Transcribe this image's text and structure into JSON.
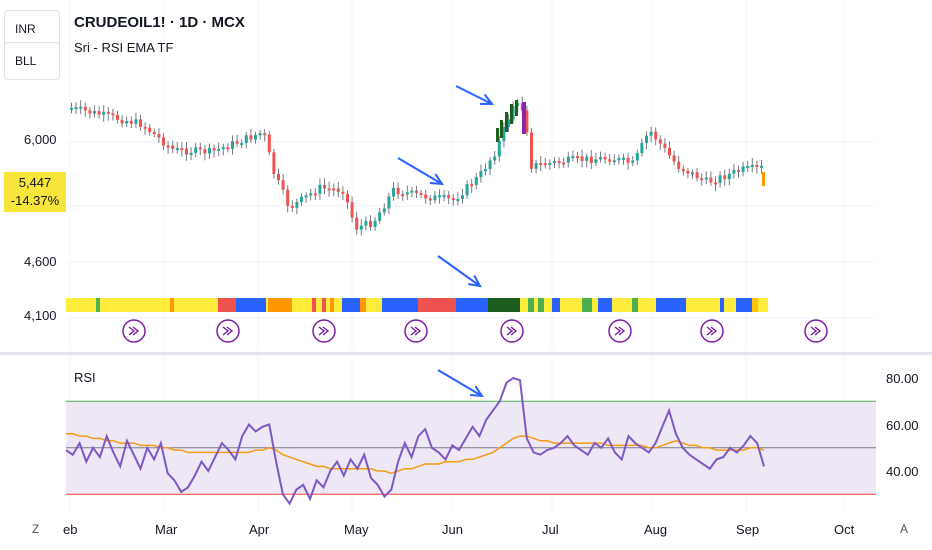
{
  "header": {
    "title": "CRUDEOIL1! · 1D · MCX",
    "indicator": "Sri - RSI EMA TF"
  },
  "badges": {
    "currency": "INR",
    "unit": "BLL"
  },
  "price_scale": {
    "labels": [
      "6,000",
      "4,600",
      "4,100"
    ],
    "last_price": "5,447",
    "last_change": "-14.37%",
    "last_color": "#f7e53b"
  },
  "rsi_pane": {
    "label": "RSI",
    "ticks": [
      "80.00",
      "60.00",
      "40.00"
    ]
  },
  "time_axis": {
    "months": [
      "eb",
      "Mar",
      "Apr",
      "May",
      "Jun",
      "Jul",
      "Aug",
      "Sep",
      "Oct"
    ],
    "left_corner": "Z",
    "right_corner": "A"
  },
  "colors": {
    "up": "#26a69a",
    "down": "#f05350",
    "wick": "#787b86",
    "rsi_line": "#7e57c2",
    "ema_line": "#f39c12",
    "arrow": "#2962ff",
    "band_fill": "#ede7f6",
    "upper_band": "#4caf50",
    "lower_band": "#f44336"
  },
  "chart_data": {
    "type": "line",
    "series": [
      {
        "name": "RSI",
        "values": [
          49,
          47,
          52,
          44,
          50,
          46,
          55,
          48,
          42,
          53,
          47,
          41,
          50,
          45,
          52,
          39,
          36,
          31,
          33,
          38,
          44,
          40,
          46,
          52,
          49,
          45,
          55,
          60,
          57,
          59,
          60,
          44,
          30,
          26,
          32,
          34,
          28,
          36,
          33,
          40,
          44,
          38,
          45,
          41,
          47,
          37,
          34,
          29,
          32,
          44,
          52,
          46,
          55,
          58,
          50,
          48,
          45,
          51,
          49,
          54,
          59,
          55,
          62,
          66,
          70,
          78,
          80,
          79,
          54,
          48,
          47,
          49,
          50,
          52,
          55,
          51,
          49,
          47,
          52,
          50,
          54,
          48,
          45,
          55,
          52,
          50,
          48,
          52,
          59,
          66,
          56,
          50,
          47,
          45,
          43,
          41,
          45,
          46,
          50,
          48,
          51,
          55,
          52,
          42
        ]
      },
      {
        "values": [
          56,
          56,
          55,
          55,
          54,
          54,
          53,
          53,
          52,
          52,
          52,
          51,
          51,
          51,
          50,
          50,
          49,
          49,
          48,
          48,
          48,
          48,
          48,
          48,
          48,
          48,
          48,
          48,
          49,
          49,
          50,
          49,
          47,
          46,
          45,
          44,
          43,
          42,
          42,
          41,
          41,
          41,
          41,
          41,
          41,
          41,
          40,
          40,
          39,
          40,
          41,
          41,
          42,
          43,
          43,
          43,
          44,
          44,
          44,
          45,
          45,
          46,
          47,
          48,
          50,
          52,
          54,
          55,
          55,
          54,
          53,
          53,
          52,
          52,
          52,
          52,
          52,
          52,
          52,
          52,
          51,
          51,
          51,
          51,
          51,
          51,
          50,
          50,
          51,
          52,
          53,
          52,
          51,
          51,
          50,
          50,
          49,
          49,
          49,
          49,
          49,
          50,
          50,
          49
        ]
      }
    ],
    "ylim": [
      25,
      85
    ]
  }
}
